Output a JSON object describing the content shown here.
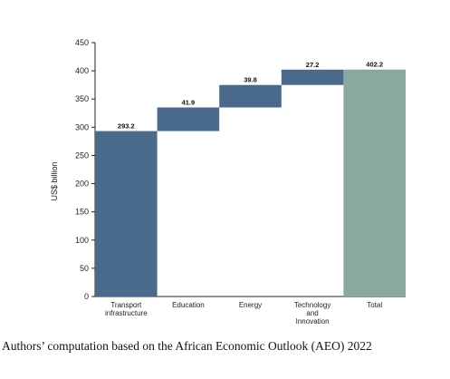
{
  "chart_data": {
    "type": "waterfall",
    "categories": [
      "Transport infrastructure",
      "Education",
      "Energy",
      "Technology and Innovation",
      "Total"
    ],
    "category_label_lines": [
      [
        "Transport",
        "infrastructure"
      ],
      [
        "Education"
      ],
      [
        "Energy"
      ],
      [
        "Technology",
        "and",
        "Innovation"
      ],
      [
        "Total"
      ]
    ],
    "values": [
      293.2,
      41.9,
      39.8,
      27.2,
      402.2
    ],
    "data_labels": [
      "293.2",
      "41.9",
      "39.8",
      "27.2",
      "402.2"
    ],
    "ylabel": "US$ billion",
    "ylim": [
      0,
      450
    ],
    "yticks": [
      0,
      50,
      100,
      150,
      200,
      250,
      300,
      350,
      400,
      450
    ],
    "grid": false,
    "colors": {
      "increment": "#4a6a8c",
      "total": "#8aa89b"
    }
  },
  "source_note": "Authors’ computation based on the African Economic Outlook (AEO) 2022"
}
